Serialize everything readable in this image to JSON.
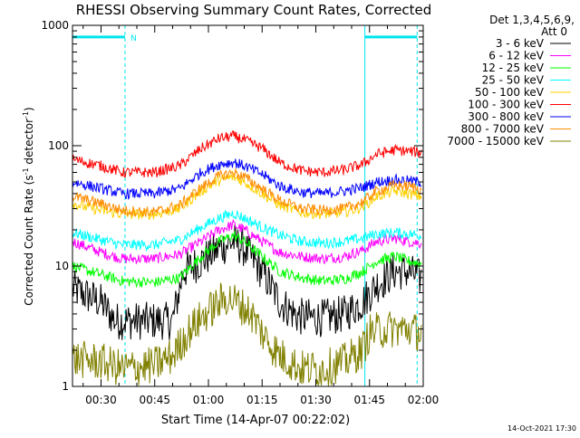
{
  "chart_data": {
    "type": "line",
    "title": "RHESSI Observing Summary Count Rates, Corrected",
    "xlabel": "Start Time (14-Apr-07 00:22:02)",
    "ylabel_main": "Corrected Count Rate (s",
    "ylabel_sup1": "-1",
    "ylabel_mid": " detector",
    "ylabel_sup2": "-1",
    "ylabel_end": ")",
    "y_scale": "log",
    "ylim": [
      1,
      1000
    ],
    "y_ticks": [
      {
        "value": 1,
        "label": "1"
      },
      {
        "value": 10,
        "label": "10"
      },
      {
        "value": 100,
        "label": "100"
      },
      {
        "value": 1000,
        "label": "1000"
      }
    ],
    "xlim_minutes": [
      22.03,
      120
    ],
    "x_ticks": [
      {
        "value": 30,
        "label": "00:30"
      },
      {
        "value": 45,
        "label": "00:45"
      },
      {
        "value": 60,
        "label": "01:00"
      },
      {
        "value": 75,
        "label": "01:15"
      },
      {
        "value": 90,
        "label": "01:30"
      },
      {
        "value": 105,
        "label": "01:45"
      },
      {
        "value": 120,
        "label": "02:00"
      }
    ],
    "legend_header_1": "Det 1,3,4,5,6,9,",
    "legend_header_2": "Att 0",
    "legend_placement": "right",
    "night_bands": [
      {
        "from": 22.03,
        "to": 36.7,
        "label": "N"
      },
      {
        "from": 103.7,
        "to": 118.3,
        "label": ""
      }
    ],
    "night_band_level": 800,
    "timestamp": "14-Oct-2021 17:30",
    "series": [
      {
        "name": "3 - 6 keV",
        "color": "#000000",
        "points": [
          [
            22.03,
            6.5
          ],
          [
            30,
            5
          ],
          [
            34,
            3.5
          ],
          [
            44,
            3.5
          ],
          [
            50,
            3.5
          ],
          [
            53,
            9
          ],
          [
            58,
            11
          ],
          [
            63,
            14
          ],
          [
            67,
            16
          ],
          [
            70,
            14
          ],
          [
            75,
            9
          ],
          [
            80,
            5
          ],
          [
            85,
            3.8
          ],
          [
            92,
            3.7
          ],
          [
            98,
            4
          ],
          [
            103,
            5
          ],
          [
            107,
            7
          ],
          [
            112,
            9
          ],
          [
            116,
            9
          ],
          [
            119,
            8
          ]
        ]
      },
      {
        "name": "6 - 12 keV",
        "color": "#ff00ff",
        "points": [
          [
            22.03,
            16
          ],
          [
            30,
            13
          ],
          [
            36,
            11.5
          ],
          [
            45,
            11.5
          ],
          [
            52,
            12.5
          ],
          [
            58,
            16
          ],
          [
            63,
            20
          ],
          [
            67,
            22
          ],
          [
            70,
            20
          ],
          [
            75,
            16
          ],
          [
            80,
            13
          ],
          [
            86,
            12
          ],
          [
            92,
            11.5
          ],
          [
            98,
            12
          ],
          [
            103,
            13.5
          ],
          [
            107,
            16
          ],
          [
            112,
            17
          ],
          [
            116,
            16
          ],
          [
            119,
            15.5
          ]
        ]
      },
      {
        "name": "12 - 25 keV",
        "color": "#00ff00",
        "points": [
          [
            22.03,
            10
          ],
          [
            30,
            8.5
          ],
          [
            36,
            7.5
          ],
          [
            45,
            7.3
          ],
          [
            52,
            8
          ],
          [
            58,
            12
          ],
          [
            63,
            16
          ],
          [
            67,
            18
          ],
          [
            70,
            16
          ],
          [
            75,
            12
          ],
          [
            80,
            9
          ],
          [
            86,
            8
          ],
          [
            92,
            7.5
          ],
          [
            98,
            7.8
          ],
          [
            103,
            9
          ],
          [
            107,
            11
          ],
          [
            112,
            12
          ],
          [
            116,
            11
          ],
          [
            119,
            10.5
          ]
        ]
      },
      {
        "name": "25 - 50 keV",
        "color": "#00ffff",
        "points": [
          [
            22.03,
            19
          ],
          [
            30,
            16.5
          ],
          [
            36,
            15
          ],
          [
            45,
            15
          ],
          [
            52,
            16.5
          ],
          [
            58,
            21
          ],
          [
            63,
            25
          ],
          [
            67,
            27.5
          ],
          [
            70,
            25
          ],
          [
            75,
            21
          ],
          [
            80,
            18
          ],
          [
            86,
            16
          ],
          [
            92,
            15.5
          ],
          [
            98,
            16
          ],
          [
            103,
            17
          ],
          [
            107,
            18.5
          ],
          [
            112,
            19
          ],
          [
            116,
            18.5
          ],
          [
            119,
            18
          ]
        ]
      },
      {
        "name": "50 - 100 keV",
        "color": "#ffd000",
        "points": [
          [
            22.03,
            33
          ],
          [
            30,
            29
          ],
          [
            36,
            27
          ],
          [
            45,
            27
          ],
          [
            52,
            30
          ],
          [
            58,
            42
          ],
          [
            63,
            52
          ],
          [
            67,
            55
          ],
          [
            70,
            50
          ],
          [
            75,
            40
          ],
          [
            80,
            32
          ],
          [
            86,
            28
          ],
          [
            92,
            27
          ],
          [
            98,
            28
          ],
          [
            103,
            31
          ],
          [
            107,
            38
          ],
          [
            112,
            42
          ],
          [
            116,
            40
          ],
          [
            119,
            38
          ]
        ]
      },
      {
        "name": "100 - 300 keV",
        "color": "#ff0000",
        "points": [
          [
            22.03,
            77
          ],
          [
            30,
            68
          ],
          [
            36,
            60
          ],
          [
            45,
            60
          ],
          [
            52,
            68
          ],
          [
            58,
            95
          ],
          [
            63,
            115
          ],
          [
            67,
            120
          ],
          [
            70,
            112
          ],
          [
            75,
            95
          ],
          [
            80,
            72
          ],
          [
            86,
            62
          ],
          [
            92,
            60
          ],
          [
            98,
            63
          ],
          [
            103,
            70
          ],
          [
            107,
            85
          ],
          [
            112,
            92
          ],
          [
            116,
            90
          ],
          [
            119,
            88
          ]
        ]
      },
      {
        "name": "300 - 800 keV",
        "color": "#0000ff",
        "points": [
          [
            22.03,
            50
          ],
          [
            30,
            44
          ],
          [
            36,
            40
          ],
          [
            45,
            40
          ],
          [
            52,
            44
          ],
          [
            58,
            60
          ],
          [
            63,
            70
          ],
          [
            67,
            73
          ],
          [
            70,
            68
          ],
          [
            75,
            58
          ],
          [
            80,
            46
          ],
          [
            86,
            41
          ],
          [
            92,
            40
          ],
          [
            98,
            42
          ],
          [
            103,
            45
          ],
          [
            107,
            50
          ],
          [
            112,
            52
          ],
          [
            116,
            51
          ],
          [
            119,
            50
          ]
        ]
      },
      {
        "name": "800 - 7000 keV",
        "color": "#ff8c00",
        "points": [
          [
            22.03,
            38
          ],
          [
            30,
            33
          ],
          [
            36,
            29
          ],
          [
            45,
            28
          ],
          [
            52,
            32
          ],
          [
            58,
            45
          ],
          [
            63,
            56
          ],
          [
            67,
            60
          ],
          [
            70,
            55
          ],
          [
            75,
            44
          ],
          [
            80,
            35
          ],
          [
            86,
            30
          ],
          [
            92,
            29
          ],
          [
            98,
            30
          ],
          [
            103,
            34
          ],
          [
            107,
            42
          ],
          [
            112,
            47
          ],
          [
            116,
            46
          ],
          [
            119,
            44
          ]
        ]
      },
      {
        "name": "7000 - 15000 keV",
        "color": "#808000",
        "points": [
          [
            22.03,
            1.7
          ],
          [
            30,
            1.6
          ],
          [
            36,
            1.4
          ],
          [
            45,
            1.5
          ],
          [
            50,
            1.8
          ],
          [
            55,
            3
          ],
          [
            60,
            4.2
          ],
          [
            65,
            5.5
          ],
          [
            68,
            5
          ],
          [
            72,
            4
          ],
          [
            76,
            2.5
          ],
          [
            80,
            1.8
          ],
          [
            86,
            1.4
          ],
          [
            92,
            1.4
          ],
          [
            98,
            1.6
          ],
          [
            103,
            2
          ],
          [
            105,
            2.8
          ],
          [
            110,
            3
          ],
          [
            116,
            3
          ],
          [
            119,
            2.8
          ]
        ]
      }
    ]
  }
}
